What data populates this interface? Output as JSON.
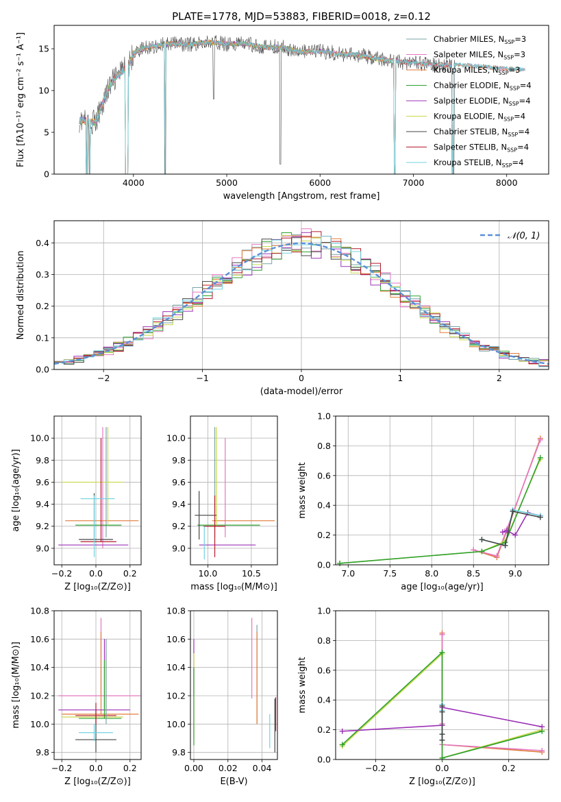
{
  "figure": {
    "title": "PLATE=1778, MJD=53883, FIBERID=0018, z=0.12"
  },
  "colors": {
    "chabrier_miles": "#7aa3a3",
    "salpeter_miles": "#e377c2",
    "kroupa_miles": "#e07b39",
    "chabrier_elodie": "#2ca02c",
    "salpeter_elodie": "#9b30b5",
    "kroupa_elodie": "#c8d84a",
    "chabrier_stelib": "#444444",
    "salpeter_stelib": "#b2182b",
    "kroupa_stelib": "#6fd3e0",
    "gauss": "#5b8fd6",
    "grid": "#b0b0b0"
  },
  "chart_data": [
    {
      "id": "spectrum",
      "type": "line",
      "xlabel": "wavelength [Angstrom, rest frame]",
      "ylabel": "Flux [fλ10⁻¹⁷ erg cm⁻² s⁻¹ A⁻¹]",
      "xlim": [
        3150,
        8450
      ],
      "ylim": [
        0,
        17.8
      ],
      "xticks": [
        4000,
        5000,
        6000,
        7000,
        8000
      ],
      "yticks": [
        0,
        5,
        10,
        15
      ],
      "legend_position": "top-right",
      "legend": [
        {
          "label": "Chabrier MILES, N",
          "sub": "SSP",
          "suffix": "=3",
          "color_key": "chabrier_miles"
        },
        {
          "label": "Salpeter MILES, N",
          "sub": "SSP",
          "suffix": "=3",
          "color_key": "salpeter_miles"
        },
        {
          "label": "Kroupa MILES, N",
          "sub": "SSP",
          "suffix": "=3",
          "color_key": "kroupa_miles"
        },
        {
          "label": "Chabrier ELODIE, N",
          "sub": "SSP",
          "suffix": "=4",
          "color_key": "chabrier_elodie"
        },
        {
          "label": "Salpeter ELODIE, N",
          "sub": "SSP",
          "suffix": "=4",
          "color_key": "salpeter_elodie"
        },
        {
          "label": "Kroupa ELODIE, N",
          "sub": "SSP",
          "suffix": "=4",
          "color_key": "kroupa_elodie"
        },
        {
          "label": "Chabrier STELIB, N",
          "sub": "SSP",
          "suffix": "=4",
          "color_key": "chabrier_stelib"
        },
        {
          "label": "Salpeter STELIB, N",
          "sub": "SSP",
          "suffix": "=4",
          "color_key": "salpeter_stelib"
        },
        {
          "label": "Kroupa STELIB, N",
          "sub": "SSP",
          "suffix": "=4",
          "color_key": "kroupa_stelib"
        }
      ],
      "continuum": [
        [
          3400,
          6.5
        ],
        [
          3600,
          6.2
        ],
        [
          3700,
          9.5
        ],
        [
          3800,
          11.5
        ],
        [
          3900,
          12.5
        ],
        [
          3950,
          13
        ],
        [
          4000,
          14.5
        ],
        [
          4100,
          15
        ],
        [
          4200,
          15.3
        ],
        [
          4400,
          15.6
        ],
        [
          4600,
          15.5
        ],
        [
          4800,
          15.8
        ],
        [
          5000,
          15.6
        ],
        [
          5200,
          15.6
        ],
        [
          5400,
          15.2
        ],
        [
          5600,
          15.2
        ],
        [
          5800,
          14.6
        ],
        [
          6000,
          14.7
        ],
        [
          6200,
          14.4
        ],
        [
          6400,
          14.3
        ],
        [
          6600,
          13.8
        ],
        [
          6800,
          13.5
        ],
        [
          7000,
          13.3
        ],
        [
          7200,
          13.1
        ],
        [
          7400,
          13.1
        ],
        [
          7600,
          13.0
        ],
        [
          7800,
          12.8
        ],
        [
          8000,
          12.6
        ],
        [
          8200,
          12.5
        ]
      ],
      "absorption_dips": [
        [
          3500,
          0
        ],
        [
          3530,
          0
        ],
        [
          3920,
          0
        ],
        [
          3935,
          0
        ],
        [
          4340,
          0
        ],
        [
          4860,
          9
        ],
        [
          5575,
          1.2
        ],
        [
          6800,
          0
        ],
        [
          7420,
          0
        ],
        [
          7430,
          0
        ]
      ],
      "grid": false
    },
    {
      "id": "residuals",
      "type": "step",
      "xlabel": "(data-model)/error",
      "ylabel": "Normed distribution",
      "xlim": [
        -2.5,
        2.5
      ],
      "ylim": [
        0,
        0.47
      ],
      "xticks": [
        -2,
        -1,
        0,
        1,
        2
      ],
      "xticklabels": [
        "−2",
        "−1",
        "0",
        "1",
        "2"
      ],
      "yticks": [
        0.0,
        0.1,
        0.2,
        0.3,
        0.4
      ],
      "yticklabels": [
        "0.0",
        "0.1",
        "0.2",
        "0.3",
        "0.4"
      ],
      "bin_width": 0.1,
      "gaussian_legend": "𝒩(0, 1)",
      "legend_position": "top-right",
      "grid": true
    },
    {
      "id": "z_age",
      "type": "errorbar",
      "xlabel": "Z [log₁₀(Z/Z⊙)]",
      "ylabel": "age  [log₁₀(age/yr)]",
      "xlim": [
        -0.245,
        0.265
      ],
      "ylim": [
        8.85,
        10.2
      ],
      "xticks": [
        -0.2,
        0.0,
        0.2
      ],
      "xticklabels": [
        "−0.2",
        "0.0",
        "0.2"
      ],
      "yticks": [
        9.0,
        9.2,
        9.4,
        9.6,
        9.8,
        10.0
      ],
      "yticklabels": [
        "9.0",
        "9.2",
        "9.4",
        "9.6",
        "9.8",
        "10.0"
      ],
      "grid": true,
      "points": [
        {
          "c": "chabrier_miles",
          "x": 0.06,
          "y": 9.6,
          "xl": 0.06,
          "xh": 0.06,
          "yl": 9.1,
          "yh": 10.1
        },
        {
          "c": "salpeter_miles",
          "x": 0.04,
          "y": 9.55,
          "xl": 0.04,
          "xh": 0.04,
          "yl": 9.0,
          "yh": 10.1
        },
        {
          "c": "kroupa_miles",
          "x": 0.03,
          "y": 9.25,
          "xl": -0.18,
          "xh": 0.25,
          "yl": 9.25,
          "yh": 9.25
        },
        {
          "c": "chabrier_elodie",
          "x": 0.06,
          "y": 9.21,
          "xl": -0.12,
          "xh": 0.15,
          "yl": 9.21,
          "yh": 9.21
        },
        {
          "c": "salpeter_elodie",
          "x": 0.05,
          "y": 9.03,
          "xl": -0.22,
          "xh": 0.19,
          "yl": 9.03,
          "yh": 9.03
        },
        {
          "c": "kroupa_elodie",
          "x": 0.07,
          "y": 9.6,
          "xl": -0.2,
          "xh": 0.16,
          "yl": 9.21,
          "yh": 10.1
        },
        {
          "c": "chabrier_stelib",
          "x": -0.01,
          "y": 9.08,
          "xl": -0.1,
          "xh": 0.1,
          "yl": 9.08,
          "yh": 9.5
        },
        {
          "c": "salpeter_stelib",
          "x": 0.03,
          "y": 9.06,
          "xl": -0.09,
          "xh": 0.12,
          "yl": 9.06,
          "yh": 10.0
        },
        {
          "c": "kroupa_stelib",
          "x": -0.01,
          "y": 9.45,
          "xl": -0.09,
          "xh": 0.11,
          "yl": 8.92,
          "yh": 9.48
        }
      ]
    },
    {
      "id": "mass_age",
      "type": "errorbar",
      "xlabel": "mass [log₁₀(M/M⊙)]",
      "ylabel": "",
      "xlim": [
        9.8,
        10.8
      ],
      "ylim": [
        8.85,
        10.2
      ],
      "xticks": [
        10.0,
        10.5
      ],
      "xticklabels": [
        "10.0",
        "10.5"
      ],
      "yticks": [
        9.0,
        9.2,
        9.4,
        9.6,
        9.8,
        10.0
      ],
      "yticklabels": [
        "9.0",
        "9.2",
        "9.4",
        "9.6",
        "9.8",
        "10.0"
      ],
      "grid": true,
      "points": [
        {
          "c": "chabrier_miles",
          "x": 10.08,
          "y": 9.6,
          "xl": 10.08,
          "xh": 10.08,
          "yl": 9.1,
          "yh": 10.1
        },
        {
          "c": "salpeter_miles",
          "x": 10.2,
          "y": 9.6,
          "xl": 10.2,
          "xh": 10.2,
          "yl": 9.1,
          "yh": 10.0
        },
        {
          "c": "kroupa_miles",
          "x": 10.1,
          "y": 9.25,
          "xl": 10.05,
          "xh": 10.77,
          "yl": 9.25,
          "yh": 9.25
        },
        {
          "c": "chabrier_elodie",
          "x": 10.05,
          "y": 9.21,
          "xl": 9.88,
          "xh": 10.6,
          "yl": 9.21,
          "yh": 9.21
        },
        {
          "c": "salpeter_elodie",
          "x": 10.1,
          "y": 9.03,
          "xl": 9.9,
          "xh": 10.55,
          "yl": 9.03,
          "yh": 9.03
        },
        {
          "c": "kroupa_elodie",
          "x": 10.1,
          "y": 9.6,
          "xl": 10.08,
          "xh": 10.08,
          "yl": 9.21,
          "yh": 10.1
        },
        {
          "c": "chabrier_stelib",
          "x": 9.9,
          "y": 9.3,
          "xl": 9.85,
          "xh": 10.1,
          "yl": 9.08,
          "yh": 9.52
        },
        {
          "c": "salpeter_stelib",
          "x": 10.08,
          "y": 9.2,
          "xl": 9.95,
          "xh": 10.2,
          "yl": 8.92,
          "yh": 9.48
        },
        {
          "c": "kroupa_stelib",
          "x": 9.96,
          "y": 9.0,
          "xl": 9.96,
          "xh": 9.96,
          "yl": 8.9,
          "yh": 9.2
        }
      ]
    },
    {
      "id": "age_weight",
      "type": "line",
      "xlabel": "age  [log₁₀(age/yr)]",
      "ylabel": "mass weight",
      "xlim": [
        6.85,
        9.4
      ],
      "ylim": [
        0.0,
        1.0
      ],
      "xticks": [
        7.0,
        7.5,
        8.0,
        8.5,
        9.0
      ],
      "xticklabels": [
        "7.0",
        "7.5",
        "8.0",
        "8.5",
        "9.0"
      ],
      "yticks": [
        0.0,
        0.2,
        0.4,
        0.6,
        0.8,
        1.0
      ],
      "yticklabels": [
        "0.0",
        "0.2",
        "0.4",
        "0.6",
        "0.8",
        "1.0"
      ],
      "grid": true,
      "series": [
        {
          "c": "kroupa_miles",
          "x": [
            8.5,
            8.78,
            8.9,
            9.3
          ],
          "y": [
            0.1,
            0.05,
            0.23,
            0.85
          ]
        },
        {
          "c": "salpeter_miles",
          "x": [
            8.5,
            8.78,
            8.9,
            9.3
          ],
          "y": [
            0.1,
            0.06,
            0.24,
            0.84
          ]
        },
        {
          "c": "kroupa_elodie",
          "x": [
            6.9,
            8.6,
            8.88,
            9.3
          ],
          "y": [
            0.01,
            0.09,
            0.16,
            0.71
          ]
        },
        {
          "c": "chabrier_elodie",
          "x": [
            6.9,
            8.6,
            8.88,
            9.3
          ],
          "y": [
            0.01,
            0.09,
            0.15,
            0.72
          ]
        },
        {
          "c": "salpeter_elodie",
          "x": [
            8.85,
            8.9,
            9.0,
            9.15,
            9.3
          ],
          "y": [
            0.22,
            0.23,
            0.2,
            0.35,
            0.33
          ]
        },
        {
          "c": "kroupa_stelib",
          "x": [
            8.6,
            8.88,
            8.97,
            9.3
          ],
          "y": [
            0.17,
            0.13,
            0.37,
            0.33
          ]
        },
        {
          "c": "chabrier_stelib",
          "x": [
            8.6,
            8.88,
            8.97,
            9.3
          ],
          "y": [
            0.17,
            0.13,
            0.36,
            0.32
          ]
        }
      ]
    },
    {
      "id": "z_mass",
      "type": "errorbar",
      "xlabel": "Z [log₁₀(Z/Z⊙)]",
      "ylabel": "mass [log₁₀(M/M⊙)]",
      "xlim": [
        -0.245,
        0.265
      ],
      "ylim": [
        9.75,
        10.8
      ],
      "xticks": [
        -0.2,
        0.0,
        0.2
      ],
      "xticklabels": [
        "−0.2",
        "0.0",
        "0.2"
      ],
      "yticks": [
        9.8,
        10.0,
        10.2,
        10.4,
        10.6,
        10.8
      ],
      "yticklabels": [
        "9.8",
        "10.0",
        "10.2",
        "10.4",
        "10.6",
        "10.8"
      ],
      "grid": true,
      "points": [
        {
          "c": "salpeter_miles",
          "x": 0.03,
          "y": 10.2,
          "xl": -0.22,
          "xh": 0.26,
          "yl": 10.2,
          "yh": 10.75
        },
        {
          "c": "kroupa_miles",
          "x": 0.03,
          "y": 10.07,
          "xl": -0.2,
          "xh": 0.25,
          "yl": 10.07,
          "yh": 10.65
        },
        {
          "c": "salpeter_elodie",
          "x": 0.05,
          "y": 10.1,
          "xl": -0.22,
          "xh": 0.2,
          "yl": 10.1,
          "yh": 10.6
        },
        {
          "c": "kroupa_elodie",
          "x": 0.06,
          "y": 10.05,
          "xl": -0.2,
          "xh": 0.16,
          "yl": 10.05,
          "yh": 10.5
        },
        {
          "c": "chabrier_elodie",
          "x": 0.05,
          "y": 10.04,
          "xl": -0.1,
          "xh": 0.15,
          "yl": 10.04,
          "yh": 10.45
        },
        {
          "c": "chabrier_stelib",
          "x": 0.0,
          "y": 9.89,
          "xl": -0.12,
          "xh": 0.12,
          "yl": 9.8,
          "yh": 10.1
        },
        {
          "c": "salpeter_stelib",
          "x": 0.0,
          "y": 10.06,
          "xl": -0.12,
          "xh": 0.12,
          "yl": 10.0,
          "yh": 10.15
        },
        {
          "c": "kroupa_stelib",
          "x": -0.01,
          "y": 9.94,
          "xl": -0.1,
          "xh": 0.1,
          "yl": 9.88,
          "yh": 10.0
        },
        {
          "c": "chabrier_miles",
          "x": 0.06,
          "y": 10.04,
          "xl": 0.06,
          "xh": 0.06,
          "yl": 10.0,
          "yh": 10.6
        }
      ]
    },
    {
      "id": "ebv_mass",
      "type": "errorbar",
      "xlabel": "E(B-V)",
      "ylabel": "",
      "xlim": [
        -0.002,
        0.049
      ],
      "ylim": [
        9.75,
        10.8
      ],
      "xticks": [
        0.0,
        0.02,
        0.04
      ],
      "xticklabels": [
        "0.00",
        "0.02",
        "0.04"
      ],
      "yticks": [
        9.8,
        10.0,
        10.2,
        10.4,
        10.6,
        10.8
      ],
      "yticklabels": [
        "9.8",
        "10.0",
        "10.2",
        "10.4",
        "10.6",
        "10.8"
      ],
      "grid": true,
      "points": [
        {
          "c": "salpeter_elodie",
          "x": 0.0,
          "y": 10.4,
          "xl": 0.0,
          "xh": 0.0,
          "yl": 10.2,
          "yh": 10.6
        },
        {
          "c": "kroupa_elodie",
          "x": 0.0,
          "y": 10.2,
          "xl": 0.0,
          "xh": 0.0,
          "yl": 9.9,
          "yh": 10.5
        },
        {
          "c": "chabrier_elodie",
          "x": 0.0,
          "y": 10.1,
          "xl": 0.0,
          "xh": 0.0,
          "yl": 9.85,
          "yh": 10.4
        },
        {
          "c": "salpeter_miles",
          "x": 0.034,
          "y": 10.45,
          "xl": 0.034,
          "xh": 0.034,
          "yl": 10.18,
          "yh": 10.75
        },
        {
          "c": "chabrier_miles",
          "x": 0.037,
          "y": 10.35,
          "xl": 0.037,
          "xh": 0.037,
          "yl": 10.0,
          "yh": 10.7
        },
        {
          "c": "kroupa_miles",
          "x": 0.037,
          "y": 10.3,
          "xl": 0.037,
          "xh": 0.037,
          "yl": 10.0,
          "yh": 10.65
        },
        {
          "c": "kroupa_stelib",
          "x": 0.0445,
          "y": 9.95,
          "xl": 0.0445,
          "xh": 0.0445,
          "yl": 9.83,
          "yh": 10.07
        },
        {
          "c": "chabrier_stelib",
          "x": 0.0475,
          "y": 10.0,
          "xl": 0.0475,
          "xh": 0.0475,
          "yl": 9.8,
          "yh": 10.18
        },
        {
          "c": "salpeter_stelib",
          "x": 0.048,
          "y": 10.05,
          "xl": 0.048,
          "xh": 0.048,
          "yl": 9.95,
          "yh": 10.19
        }
      ]
    },
    {
      "id": "z_weight",
      "type": "line",
      "xlabel": "Z [log₁₀(Z/Z⊙)]",
      "ylabel": "mass weight",
      "xlim": [
        -0.32,
        0.32
      ],
      "ylim": [
        0.0,
        1.0
      ],
      "xticks": [
        -0.2,
        0.0,
        0.2
      ],
      "xticklabels": [
        "−0.2",
        "0.0",
        "0.2"
      ],
      "yticks": [
        0.0,
        0.2,
        0.4,
        0.6,
        0.8,
        1.0
      ],
      "yticklabels": [
        "0.0",
        "0.2",
        "0.4",
        "0.6",
        "0.8",
        "1.0"
      ],
      "grid": true,
      "series": [
        {
          "c": "kroupa_miles",
          "x": [
            0.0,
            0.0,
            0.0,
            0.3
          ],
          "y": [
            0.85,
            0.23,
            0.1,
            0.05
          ]
        },
        {
          "c": "salpeter_miles",
          "x": [
            0.0,
            0.0,
            0.0,
            0.3
          ],
          "y": [
            0.84,
            0.24,
            0.1,
            0.06
          ]
        },
        {
          "c": "kroupa_elodie",
          "x": [
            -0.3,
            0.0,
            0.0,
            0.3
          ],
          "y": [
            0.09,
            0.71,
            0.01,
            0.2
          ]
        },
        {
          "c": "chabrier_elodie",
          "x": [
            -0.3,
            0.0,
            0.0,
            0.3
          ],
          "y": [
            0.1,
            0.72,
            0.01,
            0.19
          ]
        },
        {
          "c": "salpeter_elodie",
          "x": [
            -0.3,
            0.0,
            0.0,
            0.3
          ],
          "y": [
            0.19,
            0.23,
            0.35,
            0.22
          ]
        },
        {
          "c": "kroupa_stelib",
          "x": [
            0.0,
            0.0,
            0.0,
            0.0
          ],
          "y": [
            0.37,
            0.33,
            0.17,
            0.13
          ]
        },
        {
          "c": "chabrier_stelib",
          "x": [
            0.0,
            0.0,
            0.0,
            0.0
          ],
          "y": [
            0.36,
            0.32,
            0.17,
            0.13
          ]
        }
      ]
    }
  ]
}
